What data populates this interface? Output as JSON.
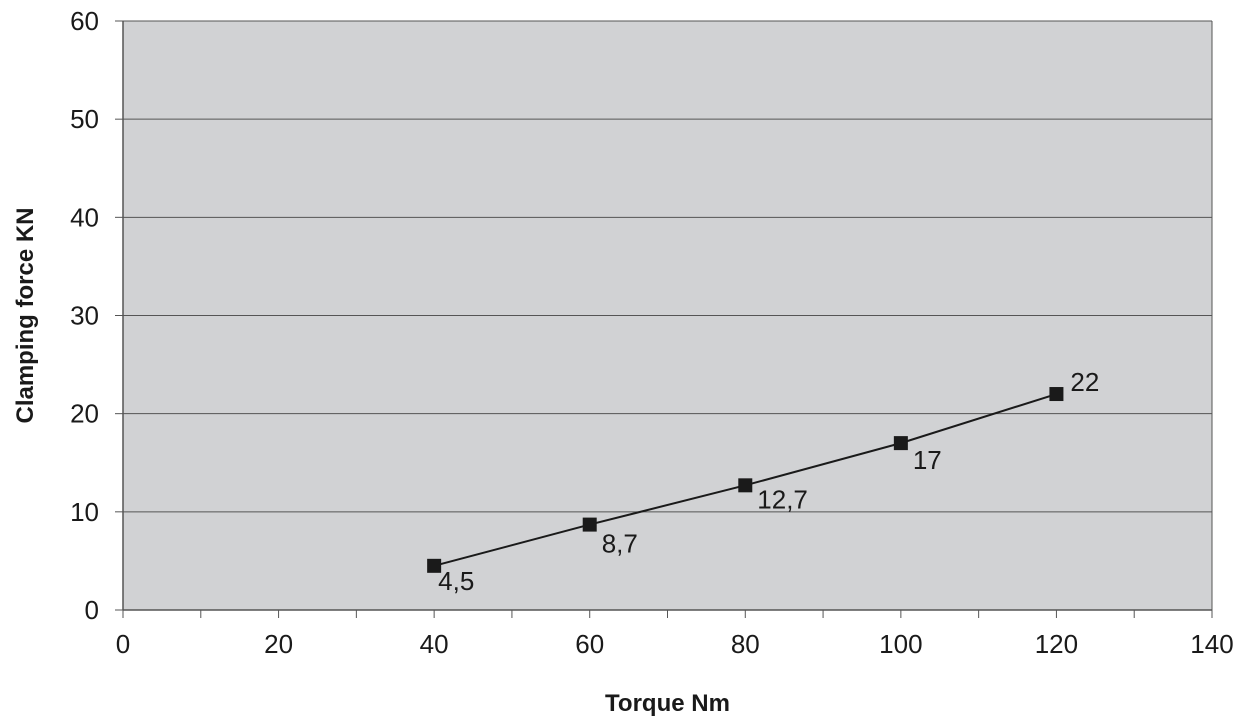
{
  "chart_data": {
    "type": "line",
    "title": "",
    "xlabel": "Torque Nm",
    "ylabel": "Clamping force KN",
    "xlim": [
      0,
      140
    ],
    "ylim": [
      0,
      60
    ],
    "x_ticks": [
      0,
      20,
      40,
      60,
      80,
      100,
      120,
      140
    ],
    "x_minor_step": 10,
    "y_ticks": [
      0,
      10,
      20,
      30,
      40,
      50,
      60
    ],
    "grid": "horizontal",
    "plot_background": "#d1d2d4",
    "line_color": "#1a1a1a",
    "marker": "square",
    "series": [
      {
        "x": [
          40,
          60,
          80,
          100,
          120
        ],
        "y": [
          4.5,
          8.7,
          12.7,
          17,
          22
        ],
        "labels": [
          "4,5",
          "8,7",
          "12,7",
          "17",
          "22"
        ]
      }
    ]
  }
}
